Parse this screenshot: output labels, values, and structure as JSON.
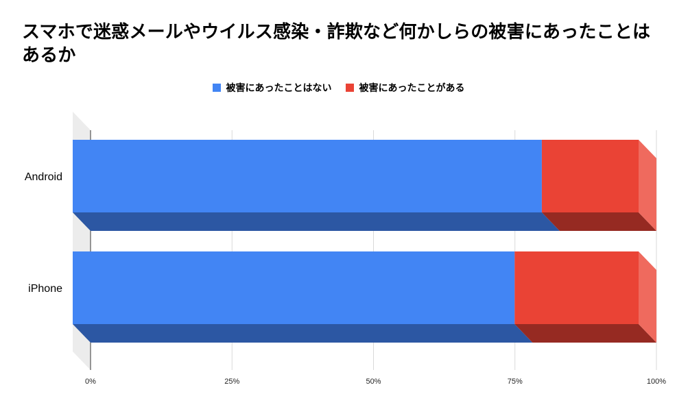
{
  "title": "スマホで迷惑メールやウイルス感染・詐欺など何かしらの被害にあったことはあるか",
  "colors": {
    "series0_front": "#4285f4",
    "series0_bottom": "#2c57a3",
    "series1_front": "#ea4335",
    "series1_bottom": "#962a22",
    "series1_side": "#ef6a5e"
  },
  "chart_data": {
    "type": "bar",
    "orientation": "horizontal",
    "stacked": "percent",
    "style": "3d",
    "title": "スマホで迷惑メールやウイルス感染・詐欺など何かしらの被害にあったことはあるか",
    "categories": [
      "Android",
      "iPhone"
    ],
    "series": [
      {
        "name": "被害にあったことはない",
        "values": [
          82.9,
          78.1
        ]
      },
      {
        "name": "被害にあったことがある",
        "values": [
          17.1,
          21.9
        ]
      }
    ],
    "xlim": [
      0,
      100
    ],
    "x_ticks": [
      "0%",
      "25%",
      "50%",
      "75%",
      "100%"
    ],
    "legend_position": "top",
    "grid": true
  }
}
